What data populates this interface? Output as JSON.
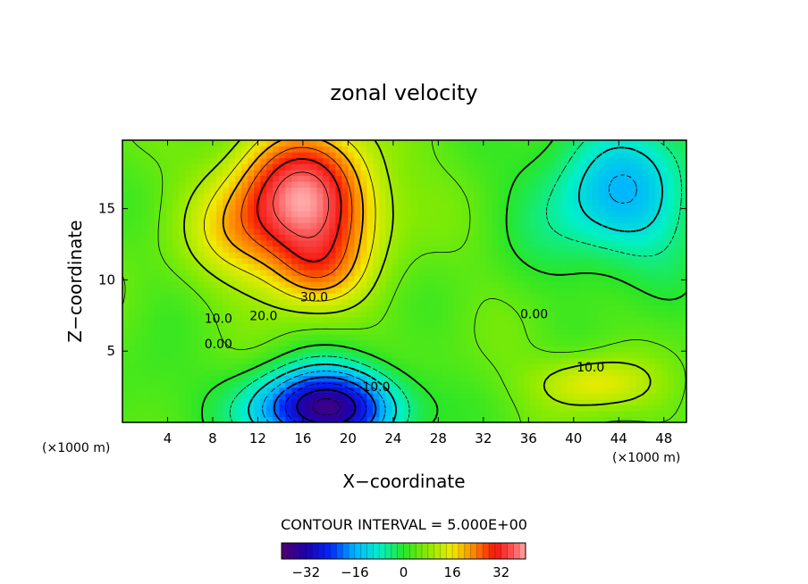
{
  "chart_data": {
    "type": "heatmap",
    "title": "zonal velocity",
    "xlabel": "X−coordinate",
    "ylabel": "Z−coordinate",
    "x_unit": "(×1000 m)",
    "y_unit": "(×1000 m)",
    "xlim": [
      0,
      50
    ],
    "ylim": [
      0,
      19.8
    ],
    "x_ticks": [
      4,
      8,
      12,
      16,
      20,
      24,
      28,
      32,
      36,
      40,
      44,
      48
    ],
    "x_tick_labels": [
      "4",
      "8",
      "12",
      "16",
      "20",
      "24",
      "28",
      "32",
      "36",
      "40",
      "44",
      "48"
    ],
    "y_ticks": [
      5,
      10,
      15
    ],
    "y_tick_labels": [
      "5",
      "10",
      "15"
    ],
    "contour_interval_text": "CONTOUR INTERVAL = 5.000E+00",
    "contour_labels": [
      {
        "text": "30.0",
        "x": 17.0,
        "y": 8.8
      },
      {
        "text": "20.0",
        "x": 12.5,
        "y": 7.5
      },
      {
        "text": "10.0",
        "x": 8.5,
        "y": 7.3
      },
      {
        "text": "0.00",
        "x": 8.5,
        "y": 5.5
      },
      {
        "text": "10.0",
        "x": 22.5,
        "y": 2.5
      },
      {
        "text": "0.00",
        "x": 36.5,
        "y": 7.6
      },
      {
        "text": "10.0",
        "x": 41.5,
        "y": 3.9
      }
    ],
    "colorbar": {
      "range": [
        -40,
        40
      ],
      "ticks": [
        -32,
        -16,
        0,
        16,
        32
      ],
      "tick_labels": [
        "−32",
        "−16",
        "0",
        "16",
        "32"
      ]
    },
    "field_features": [
      {
        "kind": "jet-maximum",
        "x": 15,
        "y": 15.5,
        "value": 37
      },
      {
        "kind": "jet-core",
        "x": 17,
        "y": 11.5,
        "value": 33
      },
      {
        "kind": "lower-minimum",
        "x": 18,
        "y": 1.0,
        "value": -35
      },
      {
        "kind": "upper-right-minimum",
        "x": 44,
        "y": 16,
        "value": -13
      },
      {
        "kind": "lower-right-maximum",
        "x": 41.5,
        "y": 2.8,
        "value": 16
      }
    ]
  }
}
